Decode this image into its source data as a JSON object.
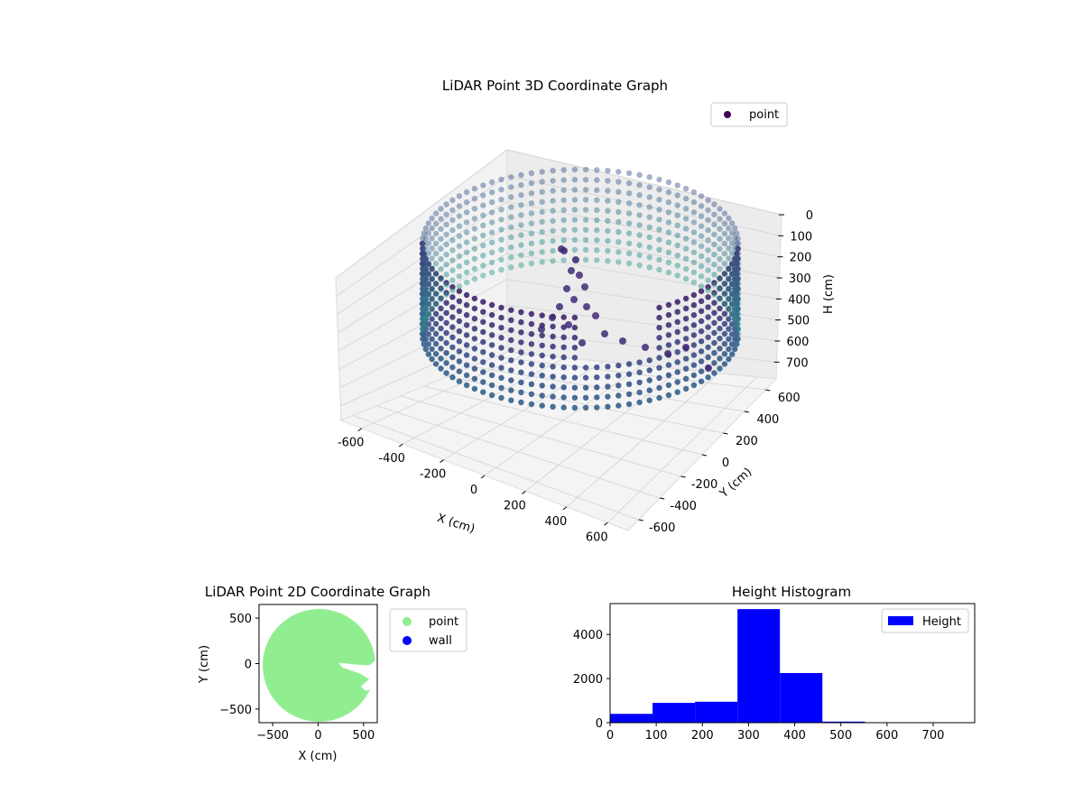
{
  "chart_data": [
    {
      "type": "scatter3d",
      "title": "LiDAR Point 3D Coordinate Graph",
      "xlabel": "X (cm)",
      "ylabel": "Y (cm)",
      "zlabel": "H (cm)",
      "xlim": [
        -700,
        700
      ],
      "ylim": [
        -700,
        700
      ],
      "zlim": [
        0,
        780
      ],
      "z_inverted": true,
      "xticks": [
        -600,
        -400,
        -200,
        0,
        200,
        400,
        600
      ],
      "yticks": [
        -600,
        -400,
        -200,
        0,
        200,
        400,
        600
      ],
      "zticks": [
        0,
        100,
        200,
        300,
        400,
        500,
        600,
        700
      ],
      "legend": {
        "entries": [
          "point"
        ],
        "placement": "top-right"
      },
      "colormap": "viridis",
      "grid": true,
      "description_series": {
        "name": "point",
        "structure": "cylindrical wall of radius about 600 cm, heights roughly 0 to 700 cm, with an object cluster near the center-front"
      }
    },
    {
      "type": "scatter",
      "title": "LiDAR Point 2D Coordinate Graph",
      "xlabel": "X (cm)",
      "ylabel": "Y (cm)",
      "xlim": [
        -650,
        650
      ],
      "ylim": [
        -650,
        650
      ],
      "xticks": [
        -500,
        0,
        500
      ],
      "yticks": [
        -500,
        0,
        500
      ],
      "legend": {
        "entries": [
          "point",
          "wall"
        ],
        "placement": "outside-right"
      },
      "series": [
        {
          "name": "point",
          "color": "#90ee90",
          "shape": "filled disk of radius about 620 cm centered near (10, -20) with a notch on the right around y=-50"
        },
        {
          "name": "wall",
          "color": "#0000ff",
          "shape": "none visible"
        }
      ]
    },
    {
      "type": "histogram",
      "title": "Height Histogram",
      "xlabel": "",
      "ylabel": "",
      "xlim": [
        0,
        790
      ],
      "ylim": [
        0,
        5400
      ],
      "xticks": [
        0,
        100,
        200,
        300,
        400,
        500,
        600,
        700
      ],
      "yticks": [
        0,
        2000,
        4000
      ],
      "legend": {
        "entries": [
          "Height"
        ],
        "placement": "top-right"
      },
      "color": "#0000ff",
      "bins": [
        {
          "x0": 0,
          "x1": 92,
          "count": 400
        },
        {
          "x0": 92,
          "x1": 184,
          "count": 900
        },
        {
          "x0": 184,
          "x1": 276,
          "count": 950
        },
        {
          "x0": 276,
          "x1": 368,
          "count": 5150
        },
        {
          "x0": 368,
          "x1": 460,
          "count": 2250
        },
        {
          "x0": 460,
          "x1": 552,
          "count": 50
        },
        {
          "x0": 552,
          "x1": 644,
          "count": 5
        },
        {
          "x0": 644,
          "x1": 736,
          "count": 3
        },
        {
          "x0": 736,
          "x1": 790,
          "count": 2
        }
      ]
    }
  ]
}
